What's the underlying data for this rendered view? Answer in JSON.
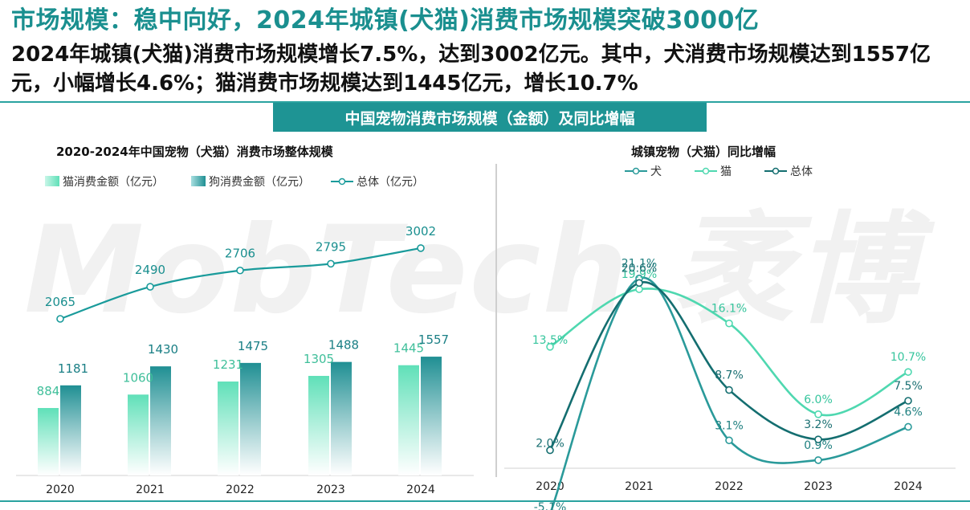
{
  "page": {
    "title": "市场规模：稳中向好，2024年城镇(犬猫)消费市场规模突破3000亿",
    "subtitle": "2024年城镇(犬猫)消费市场规模增长7.5%，达到3002亿元。其中，犬消费市场规模达到1557亿元，小幅增长4.6%；猫消费市场规模达到1445亿元，增长10.7%",
    "banner": "中国宠物消费市场规模（金额）及同比增幅",
    "watermark": "MobTech 袤博"
  },
  "colors": {
    "accent": "#1e9494",
    "cat_bar": "#5fe0b8",
    "dog_bar": "#1f8f93",
    "total_line": "#1a9b9b",
    "dog_growth": "#2a9a9a",
    "cat_growth": "#4fd8b0",
    "total_growth": "#146e70"
  },
  "chart_data": [
    {
      "type": "bar+line",
      "title": "2020-2024年中国宠物（犬猫）消费市场整体规模",
      "categories": [
        "2020",
        "2021",
        "2022",
        "2023",
        "2024"
      ],
      "series": [
        {
          "name": "猫消费金额（亿元）",
          "kind": "bar",
          "values": [
            884,
            1060,
            1231,
            1305,
            1445
          ]
        },
        {
          "name": "狗消费金额（亿元）",
          "kind": "bar",
          "values": [
            1181,
            1430,
            1475,
            1488,
            1557
          ]
        },
        {
          "name": "总体（亿元）",
          "kind": "line",
          "values": [
            2065,
            2490,
            2706,
            2795,
            3002
          ]
        }
      ],
      "legend_position": "top-left"
    },
    {
      "type": "line",
      "title": "城镇宠物（犬猫）同比增幅",
      "categories": [
        "2020",
        "2021",
        "2022",
        "2023",
        "2024"
      ],
      "series": [
        {
          "name": "犬",
          "values": [
            -5.1,
            21.1,
            3.1,
            0.9,
            4.6
          ],
          "labels": [
            "-5.1%",
            "21.1%",
            "3.1%",
            "0.9%",
            "4.6%"
          ]
        },
        {
          "name": "猫",
          "values": [
            13.5,
            19.9,
            16.1,
            6.0,
            10.7
          ],
          "labels": [
            "13.5%",
            "19.9%",
            "16.1%",
            "6.0%",
            "10.7%"
          ]
        },
        {
          "name": "总体",
          "values": [
            2.0,
            20.6,
            8.7,
            3.2,
            7.5
          ],
          "labels": [
            "2.0%",
            "20.6%",
            "8.7%",
            "3.2%",
            "7.5%"
          ]
        }
      ],
      "legend_position": "top"
    }
  ]
}
